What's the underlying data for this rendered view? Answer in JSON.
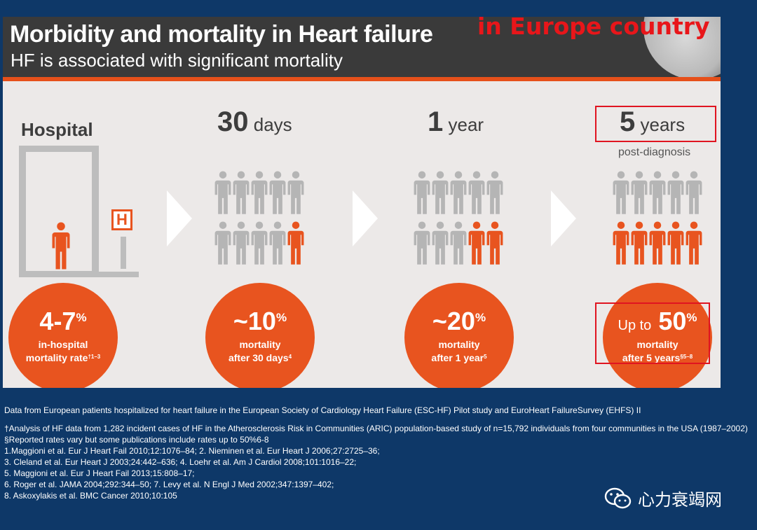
{
  "header": {
    "title": "Morbidity and mortality in Heart failure",
    "subtitle": "HF is associated with significant mortality",
    "overlay_text": "in Europe country"
  },
  "stages": [
    {
      "id": "hospital",
      "title": "Hospital",
      "sign": "H",
      "people": [
        {
          "orange": true
        }
      ],
      "stat_value": "4-7",
      "stat_unit": "%",
      "line1": "in-hospital",
      "line2": "mortality rate",
      "ref": "†1–3"
    },
    {
      "id": "30days",
      "title_num": "30",
      "title_unit": "days",
      "grey_rows": 2,
      "orange_count": 1,
      "stat_value": "~10",
      "stat_unit": "%",
      "line1": "mortality",
      "line2": "after 30 days",
      "ref": "4"
    },
    {
      "id": "1year",
      "title_num": "1",
      "title_unit": "year",
      "orange_count": 2,
      "stat_value": "~20",
      "stat_unit": "%",
      "line1": "mortality",
      "line2": "after 1 year",
      "ref": "5"
    },
    {
      "id": "5years",
      "title_num": "5",
      "title_unit": "years",
      "post_label": "post-diagnosis",
      "orange_count": 5,
      "stat_prefix": "Up to",
      "stat_value": "50",
      "stat_unit": "%",
      "line1": "mortality",
      "line2": "after 5 years",
      "ref": "§5–8"
    }
  ],
  "colors": {
    "orange": "#e8541f",
    "grey_person": "#b5b5b5",
    "background": "#0e3868",
    "panel": "#ece9e8",
    "highlight_box": "#e01420"
  },
  "footnotes": {
    "source": "Data from European patients hospitalized for heart failure in the European Society of Cardiology Heart Failure (ESC-HF) Pilot study and EuroHeart FailureSurvey (EHFS) II",
    "dagger": "†Analysis of HF data from 1,282 incident cases of HF in the Atherosclerosis Risk in Communities (ARIC) population-based study  of n=15,792 individuals   from four communities in the USA (1987–2002)",
    "section": "§Reported rates vary but some publications include rates up to 50%6-8",
    "refs": [
      "1.Maggioni et al. Eur J Heart Fail 2010;12:1076–84; 2. Nieminen et al. Eur Heart J 2006;27:2725–36;",
      "3. Cleland et al. Eur Heart J 2003;24:442–636; 4. Loehr et al. Am J Cardiol 2008;101:1016–22;",
      "5. Maggioni et al. Eur J Heart Fail 2013;15:808–17;",
      "6. Roger et al. JAMA 2004;292:344–50; 7. Levy et al. N Engl J Med 2002;347:1397–402;",
      "8. Askoxylakis et al. BMC Cancer 2010;10:105"
    ]
  },
  "watermark": {
    "icon": "wechat-icon",
    "text": "心力衰竭网"
  }
}
